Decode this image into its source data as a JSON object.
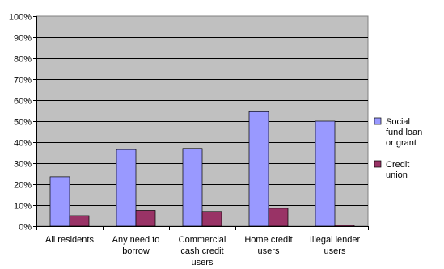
{
  "chart_data": {
    "type": "bar",
    "categories": [
      [
        "All residents"
      ],
      [
        "Any need to",
        "borrow"
      ],
      [
        "Commercial",
        "cash credit",
        "users"
      ],
      [
        "Home credit",
        "users"
      ],
      [
        "Illegal lender",
        "users"
      ]
    ],
    "series": [
      {
        "name": [
          "Social",
          "fund loan",
          "or grant"
        ],
        "color": "#9999ff",
        "values": [
          23.5,
          36.5,
          37,
          54.5,
          50
        ]
      },
      {
        "name": [
          "Credit",
          "union"
        ],
        "color": "#993366",
        "values": [
          5,
          7.5,
          7,
          8.5,
          0.5
        ]
      }
    ],
    "y_ticks": [
      "0%",
      "10%",
      "20%",
      "30%",
      "40%",
      "50%",
      "60%",
      "70%",
      "80%",
      "90%",
      "100%"
    ],
    "ylim": [
      0,
      100
    ],
    "plot_background": "#c0c0c0",
    "grid": true,
    "legend_position": "right"
  }
}
